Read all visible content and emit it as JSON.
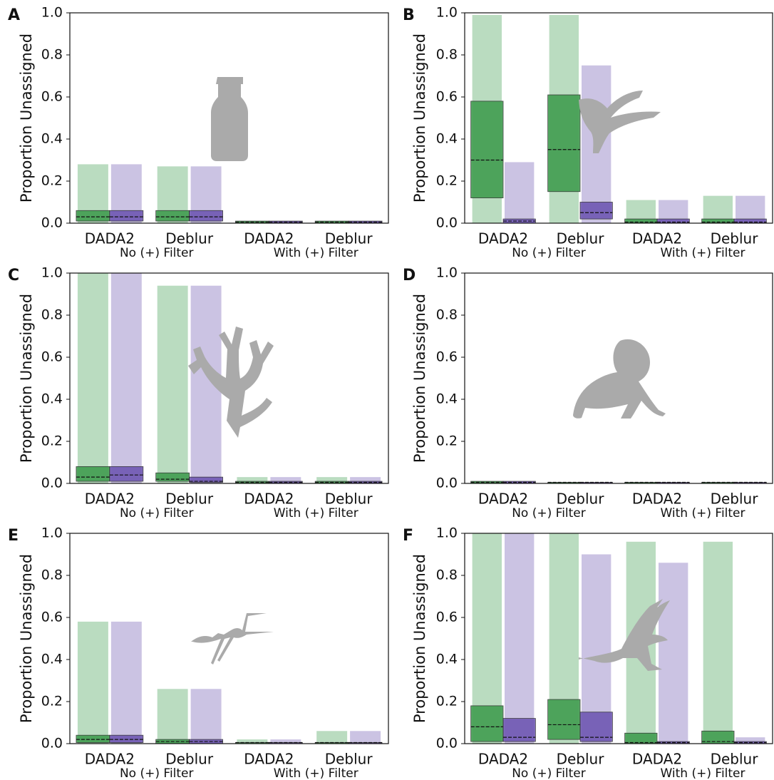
{
  "chart_data": [
    {
      "type": "box",
      "panel": "A",
      "ylabel": "Proportion Unassigned",
      "categories": [
        "DADA2",
        "Deblur",
        "DADA2",
        "Deblur"
      ],
      "groups": [
        "No (+) Filter",
        "With (+) Filter"
      ],
      "ylim": [
        0,
        1
      ],
      "yticks": [
        {
          "value": 0,
          "label": "0.0"
        },
        0.2,
        0.4,
        0.6,
        0.8,
        {
          "value": 1,
          "label": "1.0"
        }
      ],
      "series": [
        {
          "color": "#3a9a4a",
          "q1": [
            0.01,
            0.01,
            0,
            0
          ],
          "median": [
            0.03,
            0.03,
            0.005,
            0.005
          ],
          "q3": [
            0.06,
            0.06,
            0.01,
            0.01
          ],
          "max": [
            0.28,
            0.27,
            0.01,
            0.01
          ]
        },
        {
          "color": "#6a52b0",
          "q1": [
            0.01,
            0.01,
            0,
            0
          ],
          "median": [
            0.03,
            0.03,
            0.005,
            0.005
          ],
          "q3": [
            0.06,
            0.06,
            0.01,
            0.01
          ],
          "max": [
            0.28,
            0.27,
            0.01,
            0.01
          ]
        }
      ]
    },
    {
      "type": "box",
      "panel": "B",
      "ylabel": "Proportion Unassigned",
      "categories": [
        "DADA2",
        "Deblur",
        "DADA2",
        "Deblur"
      ],
      "groups": [
        "No (+) Filter",
        "With (+) Filter"
      ],
      "ylim": [
        0,
        1
      ],
      "yticks": [
        {
          "value": 0,
          "label": "0.0"
        },
        0.2,
        0.4,
        0.6,
        0.8,
        {
          "value": 1,
          "label": "1.0"
        }
      ],
      "series": [
        {
          "color": "#3a9a4a",
          "q1": [
            0.12,
            0.15,
            0,
            0
          ],
          "median": [
            0.3,
            0.35,
            0.005,
            0.005
          ],
          "q3": [
            0.58,
            0.61,
            0.02,
            0.02
          ],
          "max": [
            0.99,
            0.99,
            0.11,
            0.13
          ]
        },
        {
          "color": "#6a52b0",
          "q1": [
            0,
            0.02,
            0,
            0
          ],
          "median": [
            0.01,
            0.05,
            0.005,
            0.005
          ],
          "q3": [
            0.02,
            0.1,
            0.02,
            0.02
          ],
          "max": [
            0.29,
            0.75,
            0.11,
            0.13
          ]
        }
      ]
    },
    {
      "type": "box",
      "panel": "C",
      "ylabel": "Proportion Unassigned",
      "categories": [
        "DADA2",
        "Deblur",
        "DADA2",
        "Deblur"
      ],
      "groups": [
        "No (+) Filter",
        "With (+) Filter"
      ],
      "ylim": [
        0,
        1
      ],
      "yticks": [
        {
          "value": 0,
          "label": "0.0"
        },
        0.2,
        0.4,
        0.6,
        0.8,
        {
          "value": 1,
          "label": "1.0"
        }
      ],
      "series": [
        {
          "color": "#3a9a4a",
          "q1": [
            0.01,
            0.01,
            0,
            0
          ],
          "median": [
            0.03,
            0.02,
            0.005,
            0.005
          ],
          "q3": [
            0.08,
            0.05,
            0.01,
            0.01
          ],
          "max": [
            1,
            0.94,
            0.03,
            0.03
          ]
        },
        {
          "color": "#6a52b0",
          "q1": [
            0.01,
            0.005,
            0,
            0
          ],
          "median": [
            0.04,
            0.01,
            0.005,
            0.005
          ],
          "q3": [
            0.08,
            0.03,
            0.01,
            0.01
          ],
          "max": [
            1,
            0.94,
            0.03,
            0.03
          ]
        }
      ]
    },
    {
      "type": "box",
      "panel": "D",
      "ylabel": "Proportion Unassigned",
      "categories": [
        "DADA2",
        "Deblur",
        "DADA2",
        "Deblur"
      ],
      "groups": [
        "No (+) Filter",
        "With (+) Filter"
      ],
      "ylim": [
        0,
        1
      ],
      "yticks": [
        {
          "value": 0,
          "label": "0.0"
        },
        0.2,
        0.4,
        0.6,
        0.8,
        {
          "value": 1,
          "label": "1.0"
        }
      ],
      "series": [
        {
          "color": "#3a9a4a",
          "q1": [
            0,
            0,
            0,
            0
          ],
          "median": [
            0.005,
            0.005,
            0.005,
            0.005
          ],
          "q3": [
            0.01,
            0.005,
            0.005,
            0.005
          ],
          "max": [
            0.01,
            0.005,
            0.005,
            0.005
          ]
        },
        {
          "color": "#6a52b0",
          "q1": [
            0,
            0,
            0,
            0
          ],
          "median": [
            0.005,
            0.005,
            0.005,
            0.005
          ],
          "q3": [
            0.01,
            0.005,
            0.005,
            0.005
          ],
          "max": [
            0.01,
            0.005,
            0.005,
            0.005
          ]
        }
      ]
    },
    {
      "type": "box",
      "panel": "E",
      "ylabel": "Proportion Unassigned",
      "categories": [
        "DADA2",
        "Deblur",
        "DADA2",
        "Deblur"
      ],
      "groups": [
        "No (+) Filter",
        "With (+) Filter"
      ],
      "ylim": [
        0,
        1
      ],
      "yticks": [
        {
          "value": 0,
          "label": "0.0"
        },
        0.2,
        0.4,
        0.6,
        0.8,
        {
          "value": 1,
          "label": "1.0"
        }
      ],
      "series": [
        {
          "color": "#3a9a4a",
          "q1": [
            0.005,
            0,
            0,
            0
          ],
          "median": [
            0.02,
            0.01,
            0.005,
            0.005
          ],
          "q3": [
            0.04,
            0.02,
            0.005,
            0.005
          ],
          "max": [
            0.58,
            0.26,
            0.02,
            0.06
          ]
        },
        {
          "color": "#6a52b0",
          "q1": [
            0.005,
            0,
            0,
            0
          ],
          "median": [
            0.02,
            0.01,
            0.005,
            0.005
          ],
          "q3": [
            0.04,
            0.02,
            0.005,
            0.005
          ],
          "max": [
            0.58,
            0.26,
            0.02,
            0.06
          ]
        }
      ]
    },
    {
      "type": "box",
      "panel": "F",
      "ylabel": "Proportion Unassigned",
      "categories": [
        "DADA2",
        "Deblur",
        "DADA2",
        "Deblur"
      ],
      "groups": [
        "No (+) Filter",
        "With (+) Filter"
      ],
      "ylim": [
        0,
        1
      ],
      "yticks": [
        {
          "value": 0,
          "label": "0.0"
        },
        0.2,
        0.4,
        0.6,
        0.8,
        {
          "value": 1,
          "label": "1.0"
        }
      ],
      "series": [
        {
          "color": "#3a9a4a",
          "q1": [
            0.01,
            0.02,
            0,
            0
          ],
          "median": [
            0.08,
            0.09,
            0.005,
            0.01
          ],
          "q3": [
            0.18,
            0.21,
            0.05,
            0.06
          ],
          "max": [
            1,
            1,
            0.96,
            0.96
          ]
        },
        {
          "color": "#6a52b0",
          "q1": [
            0.01,
            0.01,
            0,
            0
          ],
          "median": [
            0.03,
            0.03,
            0.005,
            0.005
          ],
          "q3": [
            0.12,
            0.15,
            0.01,
            0.01
          ],
          "max": [
            1,
            0.9,
            0.86,
            0.03
          ]
        }
      ]
    }
  ]
}
